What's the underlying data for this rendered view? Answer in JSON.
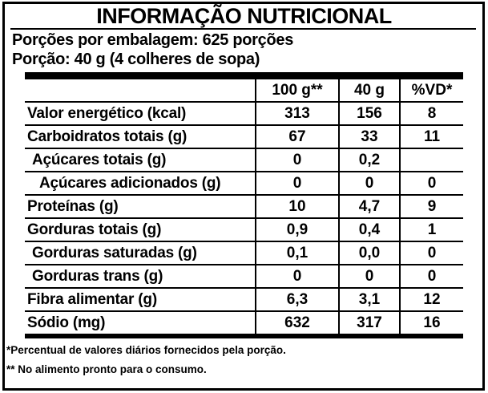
{
  "title": "INFORMAÇÃO NUTRICIONAL",
  "header": {
    "servings_per_package": "Porções por embalagem: 625 porções",
    "portion": "Porção: 40 g (4 colheres de sopa)"
  },
  "table": {
    "columns": {
      "label": "",
      "per100g": "100 g**",
      "per40g": "40 g",
      "vd": "%VD*"
    },
    "rows": [
      {
        "label": "Valor energético (kcal)",
        "per100g": "313",
        "per40g": "156",
        "vd": "8"
      },
      {
        "label": "Carboidratos totais (g)",
        "per100g": "67",
        "per40g": "33",
        "vd": "11"
      },
      {
        "label": "Açúcares totais (g)",
        "per100g": "0",
        "per40g": "0,2",
        "vd": ""
      },
      {
        "label": "Açúcares adicionados (g)",
        "per100g": "0",
        "per40g": "0",
        "vd": "0"
      },
      {
        "label": "Proteínas (g)",
        "per100g": "10",
        "per40g": "4,7",
        "vd": "9"
      },
      {
        "label": "Gorduras totais (g)",
        "per100g": "0,9",
        "per40g": "0,4",
        "vd": "1"
      },
      {
        "label": "Gorduras saturadas (g)",
        "per100g": "0,1",
        "per40g": "0,0",
        "vd": "0"
      },
      {
        "label": "Gorduras trans (g)",
        "per100g": "0",
        "per40g": "0",
        "vd": "0"
      },
      {
        "label": "Fibra alimentar (g)",
        "per100g": "6,3",
        "per40g": "3,1",
        "vd": "12"
      },
      {
        "label": "Sódio (mg)",
        "per100g": "632",
        "per40g": "317",
        "vd": "16"
      }
    ]
  },
  "footnotes": {
    "vd_note": "*Percentual de valores diários fornecidos pela porção.",
    "prepared_note": "** No alimento pronto para o consumo."
  },
  "colors": {
    "background": "#ffffff",
    "text": "#000000",
    "border": "#000000"
  }
}
